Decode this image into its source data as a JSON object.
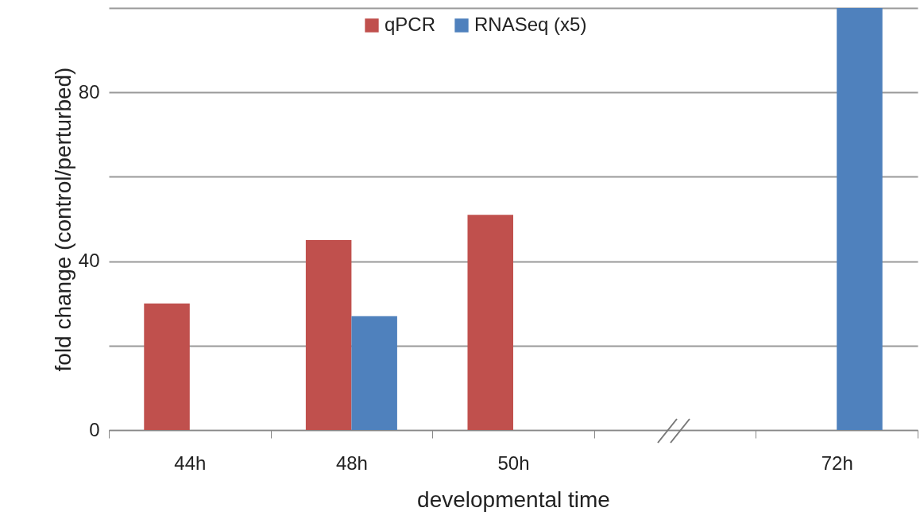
{
  "chart_data": {
    "type": "bar",
    "xlabel": "developmental time",
    "ylabel": "fold change (control/perturbed)",
    "categories": [
      "44h",
      "48h",
      "50h",
      null,
      "72h"
    ],
    "series": [
      {
        "name": "qPCR",
        "color": "#c0504d",
        "values": [
          30,
          45,
          51,
          null,
          null
        ]
      },
      {
        "name": "RNASeq (x5)",
        "color": "#4f81bd",
        "values": [
          null,
          27,
          null,
          null,
          100
        ]
      }
    ],
    "ylim": [
      0,
      100
    ],
    "yticks": [
      0,
      {
        "value": 20,
        "label": null
      },
      40,
      {
        "value": 60,
        "label": null
      },
      80,
      {
        "value": 100,
        "label": null
      }
    ],
    "grid": "y",
    "legend": "top"
  }
}
